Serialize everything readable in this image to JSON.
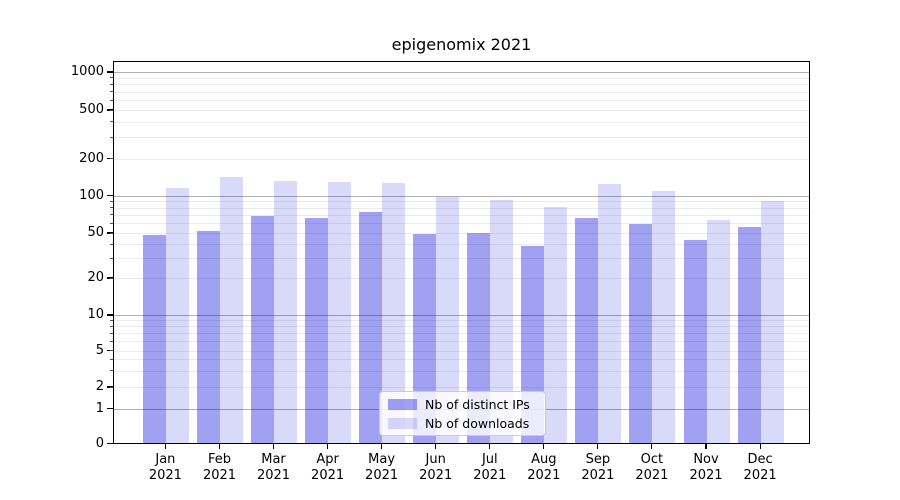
{
  "title": "epigenomix 2021",
  "chart_data": {
    "type": "bar",
    "title": "epigenomix 2021",
    "categories": [
      "Jan",
      "Feb",
      "Mar",
      "Apr",
      "May",
      "Jun",
      "Jul",
      "Aug",
      "Sep",
      "Oct",
      "Nov",
      "Dec"
    ],
    "x_tick_year": "2021",
    "series": [
      {
        "name": "Nb of distinct IPs",
        "color": "rgba(0,0,220,0.37)",
        "values": [
          48,
          51,
          68,
          66,
          73,
          49,
          50,
          38,
          65,
          59,
          43,
          55
        ]
      },
      {
        "name": "Nb of downloads",
        "color": "rgba(0,0,220,0.15)",
        "values": [
          114,
          140,
          130,
          128,
          126,
          96,
          92,
          80,
          123,
          107,
          63,
          89
        ]
      }
    ],
    "yscale": "symlog",
    "y_ticks": [
      0,
      1,
      2,
      5,
      10,
      20,
      50,
      100,
      200,
      500,
      1000
    ],
    "y_tick_labels": [
      "0",
      "1",
      "2",
      "5",
      "10",
      "20",
      "50",
      "100",
      "200",
      "500",
      "1000"
    ],
    "ylim": [
      0,
      1230
    ],
    "grid": true,
    "legend_position": "lower center",
    "colors": {
      "grid_major": "#b0b0b0",
      "grid_minor": "#ebebeb",
      "axis": "#000000",
      "background": "#ffffff",
      "bar_dark_on_white": "#a0a0f2",
      "bar_light_on_white": "#d7d7f9"
    }
  }
}
